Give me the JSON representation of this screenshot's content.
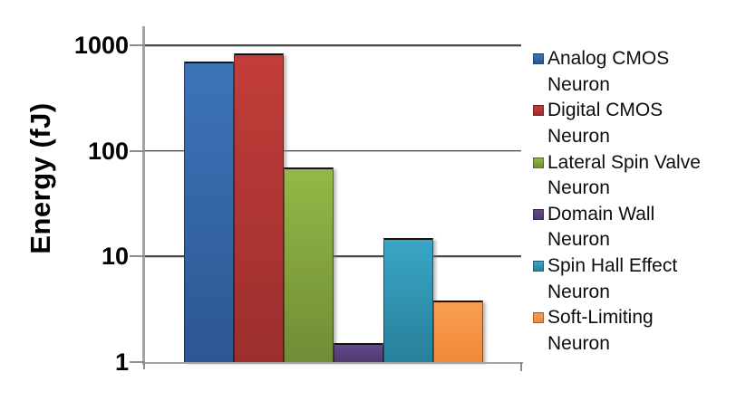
{
  "chart_data": {
    "type": "bar",
    "title": "",
    "xlabel": "",
    "ylabel": "Energy (fJ)",
    "yscale": "log",
    "ylim": [
      1,
      1000
    ],
    "ytick_values": [
      1000,
      100,
      10,
      1
    ],
    "ytick_labels": [
      "1000",
      "100",
      "10",
      "1"
    ],
    "grid": "horizontal",
    "legend_position": "right",
    "categories": [
      "Analog CMOS Neuron",
      "Digital CMOS Neuron",
      "Lateral Spin Valve Neuron",
      "Domain Wall Neuron",
      "Spin Hall Effect Neuron",
      "Soft-Limiting Neuron"
    ],
    "values": [
      700,
      830,
      70,
      1.5,
      15,
      3.8
    ],
    "series": [
      {
        "name": "Analog CMOS Neuron",
        "label_lines": [
          "Analog CMOS",
          "Neuron"
        ],
        "value": 700,
        "color_light": "#3D74B9",
        "color_dark": "#2B5792",
        "swatch_color": "#2E61A3"
      },
      {
        "name": "Digital CMOS Neuron",
        "label_lines": [
          "Digital CMOS",
          "Neuron"
        ],
        "value": 830,
        "color_light": "#C23D3A",
        "color_dark": "#9C2F2D",
        "swatch_color": "#AC3231"
      },
      {
        "name": "Lateral Spin Valve Neuron",
        "label_lines": [
          "Lateral Spin Valve",
          "Neuron"
        ],
        "value": 70,
        "color_light": "#94B847",
        "color_dark": "#6F8D36",
        "swatch_color": "#7C9F38"
      },
      {
        "name": "Domain Wall Neuron",
        "label_lines": [
          "Domain Wall",
          "Neuron"
        ],
        "value": 1.5,
        "color_light": "#64498D",
        "color_dark": "#4D3A6E",
        "swatch_color": "#5E4787"
      },
      {
        "name": "Spin Hall Effect Neuron",
        "label_lines": [
          "Spin Hall Effect",
          "Neuron"
        ],
        "value": 15,
        "color_light": "#3AA6C7",
        "color_dark": "#27809A",
        "swatch_color": "#2C92AF"
      },
      {
        "name": "Soft-Limiting Neuron",
        "label_lines": [
          "Soft-Limiting",
          "Neuron"
        ],
        "value": 3.8,
        "color_light": "#F99D51",
        "color_dark": "#F08A38",
        "swatch_color": "#F79646"
      }
    ]
  }
}
